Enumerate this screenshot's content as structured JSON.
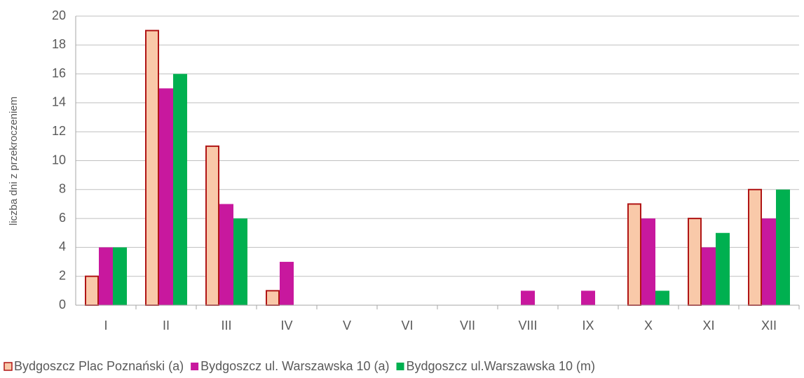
{
  "chart_data": {
    "type": "bar",
    "y_label": "liczba dni z przekroczeniem",
    "categories": [
      "I",
      "II",
      "III",
      "IV",
      "V",
      "VI",
      "VII",
      "VIII",
      "IX",
      "X",
      "XI",
      "XII"
    ],
    "series": [
      {
        "name": "Bydgoszcz Plac Poznański (a)",
        "color": "#f9c9a9",
        "edge": "#b01515",
        "values": [
          2,
          19,
          11,
          1,
          0,
          0,
          0,
          0,
          0,
          7,
          6,
          8
        ]
      },
      {
        "name": "Bydgoszcz ul. Warszawska 10 (a)",
        "color": "#c8189e",
        "values": [
          4,
          15,
          7,
          3,
          0,
          0,
          0,
          1,
          1,
          6,
          4,
          6
        ]
      },
      {
        "name": "Bydgoszcz ul.Warszawska 10 (m)",
        "color": "#00b050",
        "values": [
          4,
          16,
          6,
          0,
          0,
          0,
          0,
          0,
          0,
          1,
          5,
          8
        ]
      }
    ],
    "ylim": [
      0,
      20
    ],
    "yticks": [
      0,
      2,
      4,
      6,
      8,
      10,
      12,
      14,
      16,
      18,
      20
    ],
    "grid": true,
    "legend": "bottom"
  }
}
